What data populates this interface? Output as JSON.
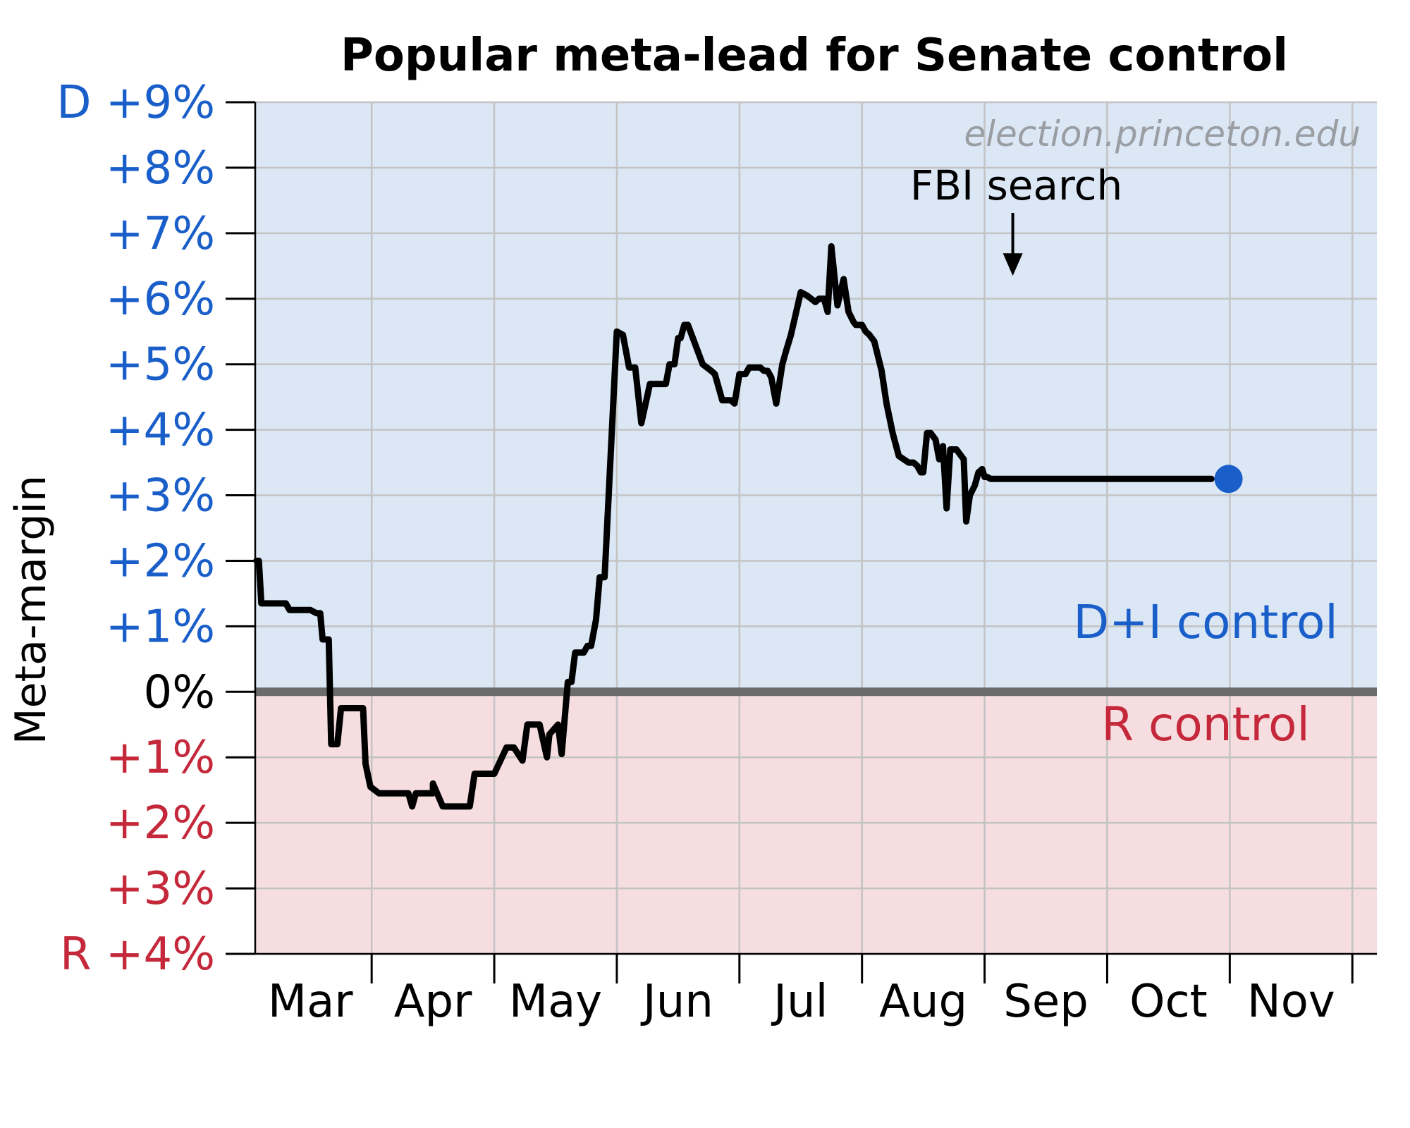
{
  "chart_data": {
    "type": "line",
    "title": "Popular meta-lead for Senate control",
    "ylabel": "Meta-margin",
    "xlabel": "",
    "watermark": "election.princeton.edu",
    "ylim": [
      -4,
      9
    ],
    "xlim_months": [
      2.05,
      11.2
    ],
    "yticks": [
      {
        "value": 9,
        "label": "D +9%",
        "side": "D"
      },
      {
        "value": 8,
        "label": "+8%",
        "side": "D"
      },
      {
        "value": 7,
        "label": "+7%",
        "side": "D"
      },
      {
        "value": 6,
        "label": "+6%",
        "side": "D"
      },
      {
        "value": 5,
        "label": "+5%",
        "side": "D"
      },
      {
        "value": 4,
        "label": "+4%",
        "side": "D"
      },
      {
        "value": 3,
        "label": "+3%",
        "side": "D"
      },
      {
        "value": 2,
        "label": "+2%",
        "side": "D"
      },
      {
        "value": 1,
        "label": "+1%",
        "side": "D"
      },
      {
        "value": 0,
        "label": "0%",
        "side": "N"
      },
      {
        "value": -1,
        "label": "+1%",
        "side": "R"
      },
      {
        "value": -2,
        "label": "+2%",
        "side": "R"
      },
      {
        "value": -3,
        "label": "+3%",
        "side": "R"
      },
      {
        "value": -4,
        "label": "R +4%",
        "side": "R"
      }
    ],
    "month_boundaries": [
      3,
      4,
      5,
      6,
      7,
      8,
      9,
      10,
      11
    ],
    "month_labels": [
      {
        "label": "Mar",
        "pos": 2.5
      },
      {
        "label": "Apr",
        "pos": 3.5
      },
      {
        "label": "May",
        "pos": 4.5
      },
      {
        "label": "Jun",
        "pos": 5.5
      },
      {
        "label": "Jul",
        "pos": 6.5
      },
      {
        "label": "Aug",
        "pos": 7.5
      },
      {
        "label": "Sep",
        "pos": 8.5
      },
      {
        "label": "Oct",
        "pos": 9.5
      },
      {
        "label": "Nov",
        "pos": 10.5
      }
    ],
    "regions": {
      "d_label": "D+I control",
      "r_label": "R control"
    },
    "annotations": [
      {
        "text": "FBI search",
        "x": 8.23,
        "y": 6.35
      }
    ],
    "series": [
      {
        "name": "Meta-margin",
        "x": [
          2.06,
          2.08,
          2.1,
          2.3,
          2.33,
          2.5,
          2.55,
          2.58,
          2.6,
          2.65,
          2.67,
          2.72,
          2.75,
          2.78,
          2.9,
          2.93,
          2.95,
          2.99,
          3.06,
          3.1,
          3.13,
          3.17,
          3.2,
          3.23,
          3.3,
          3.33,
          3.36,
          3.39,
          3.5,
          3.5,
          3.58,
          3.6,
          3.63,
          3.7,
          3.8,
          3.84,
          3.85,
          3.88,
          4.0,
          4.1,
          4.13,
          4.16,
          4.23,
          4.27,
          4.3,
          4.37,
          4.43,
          4.45,
          4.52,
          4.55,
          4.6,
          4.63,
          4.66,
          4.69,
          4.73,
          4.76,
          4.79,
          4.83,
          4.86,
          4.9,
          5.0,
          5.05,
          5.1,
          5.15,
          5.2,
          5.27,
          5.3,
          5.35,
          5.37,
          5.4,
          5.43,
          5.45,
          5.47,
          5.5,
          5.52,
          5.55,
          5.57,
          5.58,
          5.62,
          5.7,
          5.77,
          5.8,
          5.86,
          5.9,
          5.93,
          5.96,
          6.0,
          6.05,
          6.08,
          6.1,
          6.13,
          6.17,
          6.2,
          6.23,
          6.26,
          6.3,
          6.35,
          6.38,
          6.42,
          6.5,
          6.55,
          6.62,
          6.65,
          6.69,
          6.72,
          6.75,
          6.8,
          6.85,
          6.89,
          6.93,
          6.95,
          6.97,
          7.0,
          7.03,
          7.06,
          7.1,
          7.16,
          7.2,
          7.25,
          7.3,
          7.38,
          7.42,
          7.45,
          7.48,
          7.5,
          7.53,
          7.56,
          7.6,
          7.63,
          7.66,
          7.69,
          7.72,
          7.77,
          7.83,
          7.85,
          7.88,
          7.92,
          7.95,
          7.98,
          8.0,
          8.02,
          8.05,
          8.1,
          8.15,
          8.2,
          8.23,
          8.25,
          8.28,
          8.3,
          8.32,
          8.35,
          8.38,
          8.4,
          8.43,
          8.47,
          8.5,
          8.52,
          8.56,
          8.6,
          8.67,
          8.72,
          8.77,
          8.83,
          8.85,
          8.9,
          8.95,
          9.0,
          9.05,
          9.08,
          9.13,
          9.15,
          9.2,
          9.25,
          9.3,
          9.35,
          9.38,
          9.41,
          9.45,
          9.48,
          9.52,
          9.55,
          9.57,
          9.6,
          9.63,
          9.67,
          9.7,
          9.75,
          9.77,
          9.78,
          9.85
        ],
        "values": [
          2.0,
          2.0,
          1.35,
          1.35,
          1.25,
          1.25,
          1.2,
          1.2,
          0.8,
          0.8,
          -0.8,
          -0.8,
          -0.25,
          -0.25,
          -0.25,
          -0.25,
          -1.1,
          -1.45,
          -1.55,
          -1.55,
          -1.55,
          -1.55,
          -1.55,
          -1.55,
          -1.55,
          -1.75,
          -1.55,
          -1.55,
          -1.55,
          -1.4,
          -1.75,
          -1.75,
          -1.75,
          -1.75,
          -1.75,
          -1.25,
          -1.25,
          -1.25,
          -1.25,
          -0.85,
          -0.85,
          -0.85,
          -1.05,
          -0.5,
          -0.5,
          -0.5,
          -1.0,
          -0.65,
          -0.5,
          -0.95,
          0.15,
          0.15,
          0.6,
          0.6,
          0.6,
          0.7,
          0.7,
          1.1,
          1.75,
          1.75,
          5.5,
          5.45,
          4.95,
          4.95,
          4.1,
          4.7,
          4.7,
          4.7,
          4.7,
          4.7,
          5.0,
          5.0,
          5.0,
          5.4,
          5.4,
          5.6,
          5.6,
          5.6,
          5.4,
          5.0,
          4.9,
          4.85,
          4.45,
          4.45,
          4.45,
          4.4,
          4.85,
          4.85,
          4.95,
          4.95,
          4.95,
          4.95,
          4.9,
          4.9,
          4.8,
          4.4,
          5.0,
          5.2,
          5.45,
          6.1,
          6.05,
          5.95,
          6.0,
          6.0,
          5.8,
          6.8,
          5.9,
          6.3,
          5.8,
          5.65,
          5.6,
          5.6,
          5.6,
          5.5,
          5.45,
          5.35,
          4.9,
          4.4,
          3.95,
          3.6,
          3.5,
          3.5,
          3.45,
          3.35,
          3.35,
          3.95,
          3.95,
          3.85,
          3.55,
          3.75,
          2.8,
          3.7,
          3.7,
          3.55,
          2.6,
          3.0,
          3.15,
          3.35,
          3.4,
          3.28,
          3.28,
          3.25,
          3.25,
          3.25,
          3.25,
          3.25,
          3.25,
          3.25,
          3.25,
          3.25,
          3.25,
          3.25,
          3.25,
          3.25,
          3.25,
          3.25,
          3.25,
          3.25,
          3.25,
          3.25,
          3.25,
          3.25,
          3.25,
          3.25,
          3.25,
          3.25,
          3.25,
          3.25,
          3.25,
          3.25,
          3.25,
          3.25,
          3.25,
          3.25,
          3.25,
          3.25,
          3.25,
          3.25,
          3.25,
          3.25,
          3.25,
          3.25,
          3.25,
          3.25,
          3.25,
          3.25,
          3.25,
          3.25,
          3.25,
          3.25
        ]
      }
    ],
    "current_point": {
      "x": 9.99,
      "y": 3.25
    },
    "colors": {
      "d_region": "#dce7f6",
      "r_region": "#f5dde0",
      "d_text": "#1a5fc9",
      "r_text": "#c4283a",
      "zero_line": "#6b6b6b",
      "line": "#000000",
      "marker": "#1a5fc9"
    }
  }
}
